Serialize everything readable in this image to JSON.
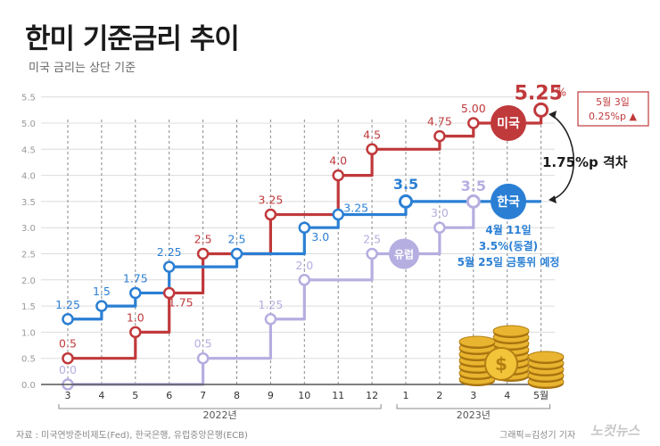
{
  "title": "한미 기준금리 추이",
  "subtitle": "미국 금리는 상단 기준",
  "footer": {
    "source": "자료 : 미국연방준비제도(Fed), 한국은행, 유럽중앙은행(ECB)",
    "credit": "그래픽=김성기 기자",
    "logo": "노컷뉴스"
  },
  "colors": {
    "us": "#c0393b",
    "korea": "#2a7fd4",
    "europe": "#b5aee0",
    "grid": "#dcdcdc"
  },
  "chart_data": {
    "type": "line",
    "step": true,
    "x_ticks": [
      "3",
      "4",
      "5",
      "6",
      "7",
      "8",
      "9",
      "10",
      "11",
      "12",
      "1",
      "2",
      "3",
      "4",
      "5월"
    ],
    "year_labels": [
      {
        "label": "2022년",
        "from": "3",
        "to": "12"
      },
      {
        "label": "2023년",
        "from": "1",
        "to": "5월"
      }
    ],
    "ylim": [
      0,
      5.5
    ],
    "y_ticks": [
      "0.0",
      "0.5",
      "1.0",
      "1.5",
      "2.0",
      "2.5",
      "3.0",
      "3.5",
      "4.0",
      "4.5",
      "5.0",
      "5.5"
    ],
    "grid": true,
    "series": [
      {
        "key": "us",
        "name": "미국",
        "points": [
          {
            "x": 0,
            "y": 0.5,
            "label": "0.5"
          },
          {
            "x": 2,
            "y": 1.0,
            "label": "1.0"
          },
          {
            "x": 3,
            "y": 1.75,
            "label": "1.75"
          },
          {
            "x": 4,
            "y": 2.5,
            "label": "2.5"
          },
          {
            "x": 6,
            "y": 3.25,
            "label": "3.25"
          },
          {
            "x": 8,
            "y": 4.0,
            "label": "4.0"
          },
          {
            "x": 9,
            "y": 4.5,
            "label": "4.5"
          },
          {
            "x": 11,
            "y": 4.75,
            "label": "4.75"
          },
          {
            "x": 12,
            "y": 5.0,
            "label": "5.00"
          },
          {
            "x": 14,
            "y": 5.25,
            "label": "5.25"
          }
        ]
      },
      {
        "key": "korea",
        "name": "한국",
        "points": [
          {
            "x": 0,
            "y": 1.25,
            "label": "1.25"
          },
          {
            "x": 1,
            "y": 1.5,
            "label": "1.5"
          },
          {
            "x": 2,
            "y": 1.75,
            "label": "1.75"
          },
          {
            "x": 3,
            "y": 2.25,
            "label": "2.25"
          },
          {
            "x": 5,
            "y": 2.5,
            "label": "2.5"
          },
          {
            "x": 7,
            "y": 3.0,
            "label": "3.0"
          },
          {
            "x": 8,
            "y": 3.25,
            "label": "3.25"
          },
          {
            "x": 10,
            "y": 3.5,
            "label": "3.5"
          }
        ]
      },
      {
        "key": "europe",
        "name": "유럽",
        "points": [
          {
            "x": 0,
            "y": 0.0,
            "label": "0.0"
          },
          {
            "x": 4,
            "y": 0.5,
            "label": "0.5"
          },
          {
            "x": 6,
            "y": 1.25,
            "label": "1.25"
          },
          {
            "x": 7,
            "y": 2.0,
            "label": "2.0"
          },
          {
            "x": 9,
            "y": 2.5,
            "label": "2.5"
          },
          {
            "x": 11,
            "y": 3.0,
            "label": "3.0"
          },
          {
            "x": 12,
            "y": 3.5,
            "label": "3.5"
          }
        ]
      }
    ],
    "annotations": {
      "us_callout_date": "5월 3일",
      "us_callout_change": "0.25%p ▲",
      "gap": "1.75%p 격차",
      "korea_note": [
        "4월 11일",
        "3.5%(동결)",
        "5월 25일 금통위 예정"
      ]
    }
  }
}
